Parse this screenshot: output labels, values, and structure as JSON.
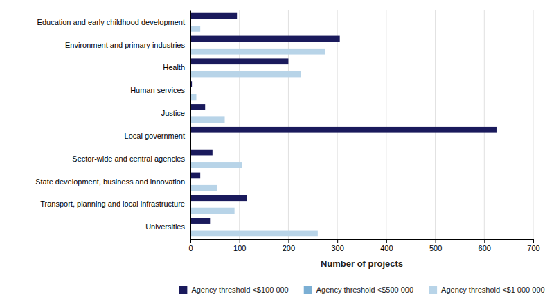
{
  "chart_data": {
    "type": "bar",
    "orientation": "horizontal",
    "categories": [
      "Education and early childhood development",
      "Environment and primary industries",
      "Health",
      "Human services",
      "Justice",
      "Local government",
      "Sector-wide and central agencies",
      "State development, business and innovation",
      "Transport, planning and local infrastructure",
      "Universities"
    ],
    "series": [
      {
        "name": "Agency threshold <$100 000",
        "color": "#1a1a5c",
        "values": [
          95,
          305,
          200,
          3,
          30,
          625,
          45,
          20,
          115,
          40
        ]
      },
      {
        "name": "Agency threshold <$500 000",
        "color": "#7bafd4",
        "values": [
          0,
          0,
          0,
          0,
          0,
          0,
          0,
          0,
          0,
          0
        ]
      },
      {
        "name": "Agency threshold <$1 000 000",
        "color": "#b8d4e8",
        "values": [
          20,
          275,
          225,
          12,
          70,
          0,
          105,
          55,
          90,
          260
        ]
      }
    ],
    "xlabel": "Number of projects",
    "xlim": [
      0,
      700
    ],
    "xticks": [
      0,
      100,
      200,
      300,
      400,
      500,
      600,
      700
    ],
    "grid": true,
    "legend": "bottom"
  }
}
